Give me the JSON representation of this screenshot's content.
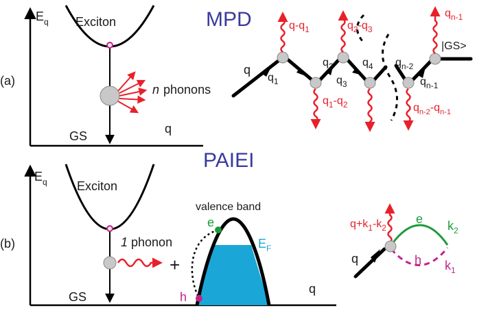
{
  "panel_a": {
    "label": "(a)",
    "energy_axis": "E",
    "energy_axis_sub": "q",
    "momentum_axis": "q",
    "exciton_label": "Exciton",
    "ground_state_label": "GS",
    "phonons_n": "n",
    "phonons_text": "phonons"
  },
  "mpd": {
    "title": "MPD",
    "incoming": "q",
    "state_label": "|GS>",
    "steps": [
      {
        "base": "q",
        "sub": "1"
      },
      {
        "base": "q",
        "sub": "2"
      },
      {
        "base": "q",
        "sub": "3"
      },
      {
        "base": "q",
        "sub": "4"
      },
      {
        "base": "q",
        "sub": "n-2"
      },
      {
        "base": "q",
        "sub": "n-1"
      }
    ],
    "emitted": {
      "up1": {
        "base": "q-q",
        "sub": "1"
      },
      "up2": {
        "p1": "q",
        "s1": "2",
        "p2": "-q",
        "s2": "3"
      },
      "up3": {
        "base": "q",
        "sub": "n-1"
      },
      "down1": {
        "p1": "q",
        "s1": "1",
        "p2": "-q",
        "s2": "2"
      },
      "down2": {
        "p1": "q",
        "s1": "n-2",
        "p2": "-q",
        "s2": "n-1"
      }
    }
  },
  "panel_b": {
    "label": "(b)",
    "energy_axis": "E",
    "energy_axis_sub": "q",
    "momentum_axis": "q",
    "exciton_label": "Exciton",
    "ground_state_label": "GS",
    "phonon_count": "1",
    "phonon_text": "phonon",
    "plus": "+",
    "valence_band": "valence band",
    "electron": "e",
    "hole": "h",
    "fermi_base": "E",
    "fermi_sub": "F"
  },
  "paiei": {
    "title": "PAIEI",
    "incoming": "q",
    "emitted": {
      "p1": "q+k",
      "s1": "1",
      "p2": "-k",
      "s2": "2"
    },
    "electron": "e",
    "hole": "h",
    "k_electron": {
      "base": "k",
      "sub": "2"
    },
    "k_hole": {
      "base": "k",
      "sub": "1"
    }
  },
  "colors": {
    "title_blue": "#3a3a9e",
    "phonon_red": "#e8202a",
    "electron_green": "#1e9a3c",
    "hole_magenta": "#c4228a",
    "band_fill": "#1aa7d8"
  }
}
